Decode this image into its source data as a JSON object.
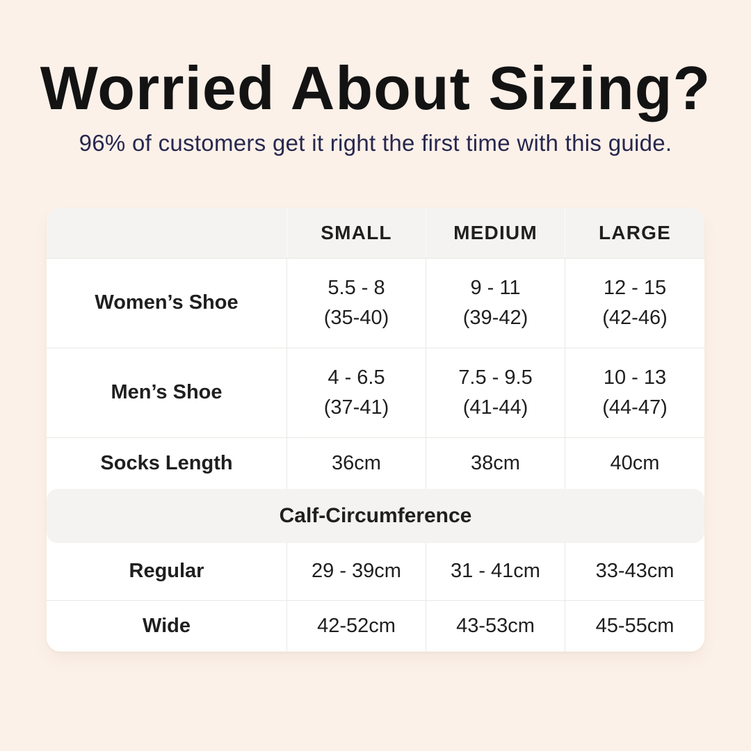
{
  "colors": {
    "background": "#fcf1e9",
    "card": "#ffffff",
    "band": "#f4f3f1",
    "border": "#eae8e5",
    "band_divider": "#fbfaf9",
    "title": "#131313",
    "subtitle": "#27274e",
    "text": "#1f1f1f"
  },
  "header": {
    "title": "Worried About Sizing?",
    "subtitle": "96% of customers get it right the first time with this guide."
  },
  "table": {
    "columns": [
      "SMALL",
      "MEDIUM",
      "LARGE"
    ],
    "rows": [
      {
        "label": "Women’s Shoe",
        "cells": [
          {
            "line1": "5.5 - 8",
            "line2": "(35-40)"
          },
          {
            "line1": "9 - 11",
            "line2": "(39-42)"
          },
          {
            "line1": "12 - 15",
            "line2": "(42-46)"
          }
        ]
      },
      {
        "label": "Men’s Shoe",
        "cells": [
          {
            "line1": "4 - 6.5",
            "line2": "(37-41)"
          },
          {
            "line1": "7.5 - 9.5",
            "line2": "(41-44)"
          },
          {
            "line1": "10 - 13",
            "line2": "(44-47)"
          }
        ]
      },
      {
        "label": "Socks Length",
        "cells": [
          {
            "line1": "36cm"
          },
          {
            "line1": "38cm"
          },
          {
            "line1": "40cm"
          }
        ]
      }
    ],
    "section": {
      "title": "Calf-Circumference",
      "rows": [
        {
          "label": "Regular",
          "cells": [
            {
              "line1": "29 - 39cm"
            },
            {
              "line1": "31 - 41cm"
            },
            {
              "line1": "33-43cm"
            }
          ]
        },
        {
          "label": "Wide",
          "cells": [
            {
              "line1": "42-52cm"
            },
            {
              "line1": "43-53cm"
            },
            {
              "line1": "45-55cm"
            }
          ]
        }
      ]
    }
  },
  "chart_data": {
    "type": "table",
    "title": "Worried About Sizing?",
    "subtitle": "96% of customers get it right the first time with this guide.",
    "columns": [
      "",
      "SMALL",
      "MEDIUM",
      "LARGE"
    ],
    "rows": [
      [
        "Women’s Shoe",
        "5.5 - 8 (35-40)",
        "9 - 11 (39-42)",
        "12 - 15 (42-46)"
      ],
      [
        "Men’s Shoe",
        "4 - 6.5 (37-41)",
        "7.5 - 9.5 (41-44)",
        "10 - 13 (44-47)"
      ],
      [
        "Socks Length",
        "36cm",
        "38cm",
        "40cm"
      ],
      [
        "Calf-Circumference",
        "",
        "",
        ""
      ],
      [
        "Regular",
        "29 - 39cm",
        "31 - 41cm",
        "33-43cm"
      ],
      [
        "Wide",
        "42-52cm",
        "43-53cm",
        "45-55cm"
      ]
    ]
  }
}
